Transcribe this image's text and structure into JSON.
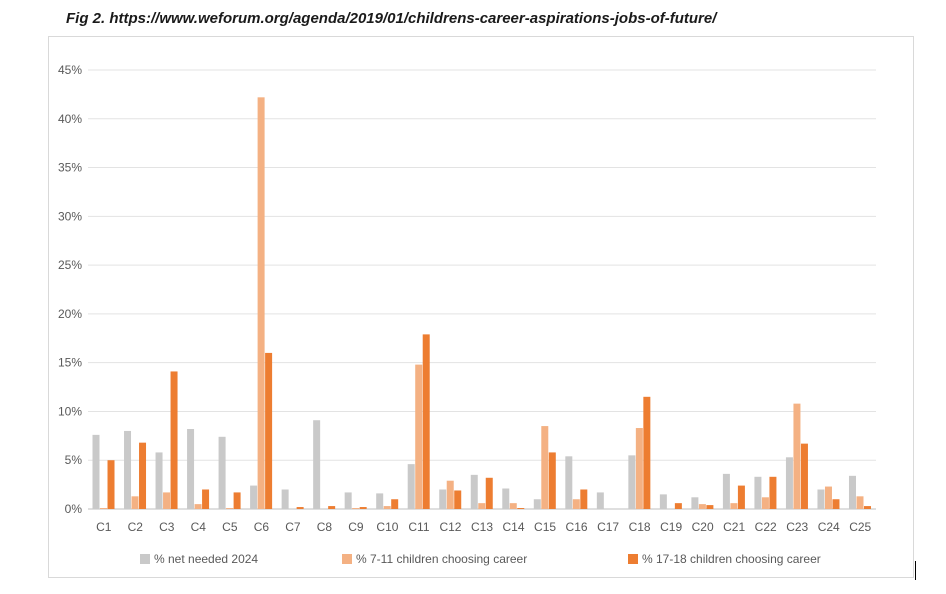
{
  "caption": "Fig 2. https://www.weforum.org/agenda/2019/01/childrens-career-aspirations-jobs-of-future/",
  "chart_data": {
    "type": "bar",
    "title": "",
    "xlabel": "",
    "ylabel": "",
    "ylim": [
      0,
      45
    ],
    "yticks": [
      "0%",
      "5%",
      "10%",
      "15%",
      "20%",
      "25%",
      "30%",
      "35%",
      "40%",
      "45%"
    ],
    "grid": true,
    "legend_position": "bottom",
    "categories": [
      "C1",
      "C2",
      "C3",
      "C4",
      "C5",
      "C6",
      "C7",
      "C8",
      "C9",
      "C10",
      "C11",
      "C12",
      "C13",
      "C14",
      "C15",
      "C16",
      "C17",
      "C18",
      "C19",
      "C20",
      "C21",
      "C22",
      "C23",
      "C24",
      "C25"
    ],
    "series": [
      {
        "name": "% net needed 2024",
        "color": "#c9c9c9",
        "values": [
          7.6,
          8.0,
          5.8,
          8.2,
          7.4,
          2.4,
          2.0,
          9.1,
          1.7,
          1.6,
          4.6,
          2.0,
          3.5,
          2.1,
          1.0,
          5.4,
          1.7,
          5.5,
          1.5,
          1.2,
          3.6,
          3.3,
          5.3,
          2.0,
          3.4
        ]
      },
      {
        "name": "% 7-11 children choosing career",
        "color": "#f4b183",
        "values": [
          0.1,
          1.3,
          1.7,
          0.5,
          0.1,
          42.2,
          0.0,
          0.0,
          0.1,
          0.3,
          14.8,
          2.9,
          0.6,
          0.6,
          8.5,
          1.0,
          0.0,
          8.3,
          0.0,
          0.5,
          0.6,
          1.2,
          10.8,
          2.3,
          1.3
        ]
      },
      {
        "name": "% 17-18 children choosing career",
        "color": "#ed7d31",
        "values": [
          5.0,
          6.8,
          14.1,
          2.0,
          1.7,
          16.0,
          0.2,
          0.3,
          0.2,
          1.0,
          17.9,
          1.9,
          3.2,
          0.1,
          5.8,
          2.0,
          0.0,
          11.5,
          0.6,
          0.4,
          2.4,
          3.3,
          6.7,
          1.0,
          0.3
        ]
      }
    ]
  }
}
